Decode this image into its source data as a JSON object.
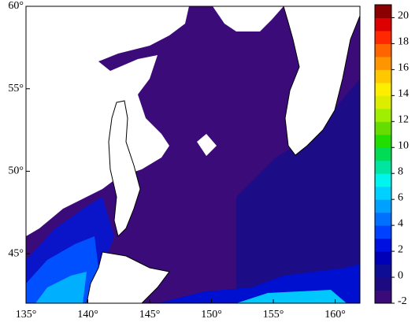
{
  "map": {
    "xlim": [
      135,
      162
    ],
    "ylim": [
      42,
      60
    ],
    "lon_ticks": [
      {
        "value": 135,
        "label": "135°"
      },
      {
        "value": 140,
        "label": "140°"
      },
      {
        "value": 145,
        "label": "145°"
      },
      {
        "value": 150,
        "label": "150°"
      },
      {
        "value": 155,
        "label": "155°"
      },
      {
        "value": 160,
        "label": "160°"
      }
    ],
    "lat_ticks": [
      {
        "value": 45,
        "label": "45°"
      },
      {
        "value": 50,
        "label": "50°"
      },
      {
        "value": 55,
        "label": "55°"
      },
      {
        "value": 60,
        "label": "60°"
      }
    ]
  },
  "colorbar": {
    "lim": [
      -2,
      21
    ],
    "ticks": [
      -2,
      0,
      2,
      4,
      6,
      8,
      10,
      12,
      14,
      16,
      18,
      20
    ],
    "colors": [
      "#3a0a78",
      "#1e0a80",
      "#0d0d96",
      "#0000b8",
      "#0010e0",
      "#0040ff",
      "#0070ff",
      "#00a0ff",
      "#00d0ff",
      "#00f5ee",
      "#00e6a0",
      "#00dd55",
      "#22dd00",
      "#66dd00",
      "#a0ee00",
      "#dded00",
      "#ffee00",
      "#ffc800",
      "#ff9600",
      "#ff6400",
      "#ff2800",
      "#dd0000",
      "#8b0000"
    ]
  }
}
